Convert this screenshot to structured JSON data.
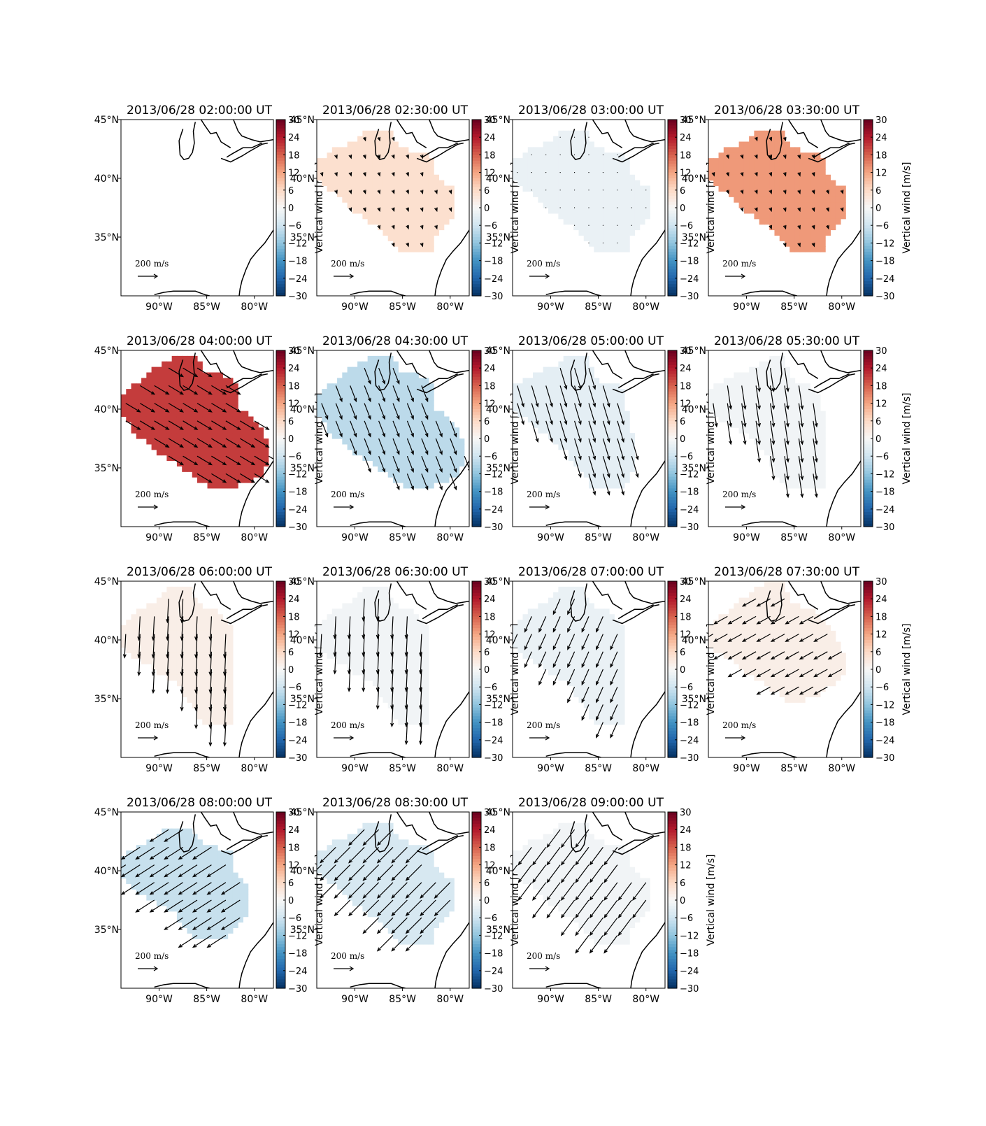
{
  "figure": {
    "grid": {
      "rows": 4,
      "cols": 4
    },
    "map_extent": {
      "lon": [
        -94,
        -78
      ],
      "lat": [
        30,
        45
      ]
    },
    "lon_ticks": [
      -90,
      -85,
      -80
    ],
    "lat_ticks": [
      35,
      40,
      45
    ],
    "lon_labels": [
      "90°W",
      "85°W",
      "80°W"
    ],
    "lat_labels": [
      "35°N",
      "40°N",
      "45°N"
    ],
    "colorbar": {
      "ticks": [
        "30",
        "24",
        "18",
        "12",
        "6",
        "0",
        "−6",
        "−12",
        "−18",
        "−24",
        "−30"
      ],
      "label": "Vertical wind [m/s]",
      "range": [
        -30,
        30
      ],
      "colormap": "RdBu_r"
    },
    "reference_arrow_label": "200 m/s"
  },
  "chart_data": [
    {
      "type": "map",
      "title": "2013/06/28 02:00:00 UT",
      "vertical_wind_ms": null,
      "shape": "none",
      "wind": {
        "u": 0,
        "v": 0,
        "scale": 0
      }
    },
    {
      "type": "map",
      "title": "2013/06/28 02:30:00 UT",
      "vertical_wind_ms": 5,
      "shape": "A",
      "wind": {
        "u": 0.1,
        "v": -0.3,
        "scale": 0.2
      }
    },
    {
      "type": "map",
      "title": "2013/06/28 03:00:00 UT",
      "vertical_wind_ms": -2,
      "shape": "A",
      "wind": {
        "u": 0,
        "v": 0,
        "scale": 0.05
      }
    },
    {
      "type": "map",
      "title": "2013/06/28 03:30:00 UT",
      "vertical_wind_ms": 13,
      "shape": "A",
      "wind": {
        "u": 0.1,
        "v": -0.3,
        "scale": 0.2
      }
    },
    {
      "type": "map",
      "title": "2013/06/28 04:00:00 UT",
      "vertical_wind_ms": 21,
      "shape": "B",
      "wind": {
        "u": 0.75,
        "v": -0.45,
        "scale": 1
      }
    },
    {
      "type": "map",
      "title": "2013/06/28 04:30:00 UT",
      "vertical_wind_ms": -8,
      "shape": "B",
      "wind": {
        "u": 0.35,
        "v": -0.9,
        "scale": 1
      }
    },
    {
      "type": "map",
      "title": "2013/06/28 05:00:00 UT",
      "vertical_wind_ms": -3,
      "shape": "C",
      "wind": {
        "u": 0.3,
        "v": -1,
        "scale": 1.3
      }
    },
    {
      "type": "map",
      "title": "2013/06/28 05:30:00 UT",
      "vertical_wind_ms": -1,
      "shape": "D",
      "wind": {
        "u": 0.15,
        "v": -1,
        "scale": 1.4
      }
    },
    {
      "type": "map",
      "title": "2013/06/28 06:00:00 UT",
      "vertical_wind_ms": 2,
      "shape": "E",
      "wind": {
        "u": -0.05,
        "v": -1,
        "scale": 1.4
      }
    },
    {
      "type": "map",
      "title": "2013/06/28 06:30:00 UT",
      "vertical_wind_ms": -1,
      "shape": "E",
      "wind": {
        "u": -0.05,
        "v": -1,
        "scale": 1.3
      }
    },
    {
      "type": "map",
      "title": "2013/06/28 07:00:00 UT",
      "vertical_wind_ms": -2,
      "shape": "E",
      "wind": {
        "u": -0.4,
        "v": -0.9,
        "scale": 1
      }
    },
    {
      "type": "map",
      "title": "2013/06/28 07:30:00 UT",
      "vertical_wind_ms": 2,
      "shape": "F",
      "wind": {
        "u": -0.9,
        "v": -0.5,
        "scale": 0.9
      }
    },
    {
      "type": "map",
      "title": "2013/06/28 08:00:00 UT",
      "vertical_wind_ms": -7,
      "shape": "G",
      "wind": {
        "u": -0.85,
        "v": -0.55,
        "scale": 1.3
      }
    },
    {
      "type": "map",
      "title": "2013/06/28 08:30:00 UT",
      "vertical_wind_ms": -5,
      "shape": "A",
      "wind": {
        "u": -0.7,
        "v": -0.7,
        "scale": 1.3
      }
    },
    {
      "type": "map",
      "title": "2013/06/28 09:00:00 UT",
      "vertical_wind_ms": -1,
      "shape": "A",
      "wind": {
        "u": -0.6,
        "v": -0.8,
        "scale": 1.3
      }
    }
  ]
}
